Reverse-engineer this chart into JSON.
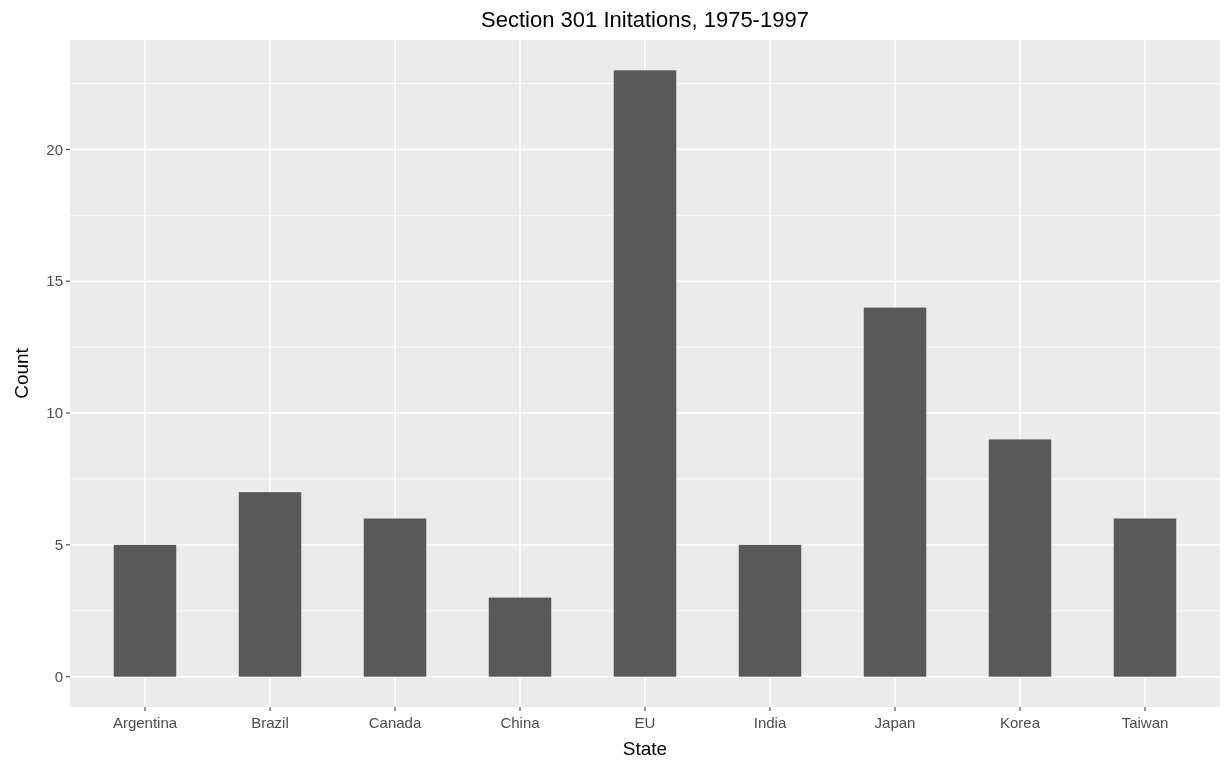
{
  "chart_data": {
    "type": "bar",
    "title": "Section 301 Initations, 1975-1997",
    "xlabel": "State",
    "ylabel": "Count",
    "categories": [
      "Argentina",
      "Brazil",
      "Canada",
      "China",
      "EU",
      "India",
      "Japan",
      "Korea",
      "Taiwan"
    ],
    "values": [
      5,
      7,
      6,
      3,
      23,
      5,
      14,
      9,
      6
    ],
    "color": "#595959",
    "ylim": [
      -1.15,
      24.15
    ],
    "yticks": [
      0,
      5,
      10,
      15,
      20
    ],
    "grid": true
  }
}
